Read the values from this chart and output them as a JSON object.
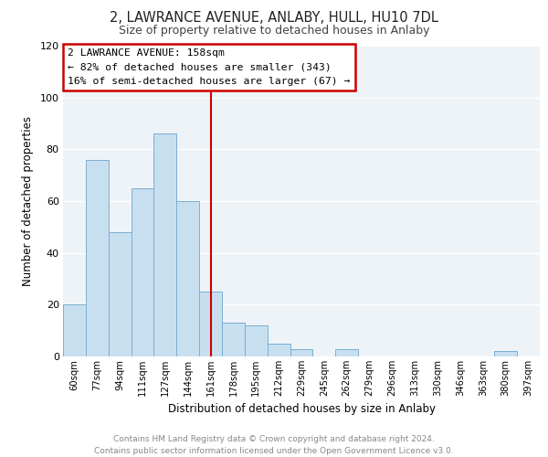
{
  "title": "2, LAWRANCE AVENUE, ANLABY, HULL, HU10 7DL",
  "subtitle": "Size of property relative to detached houses in Anlaby",
  "xlabel": "Distribution of detached houses by size in Anlaby",
  "ylabel": "Number of detached properties",
  "footer_line1": "Contains HM Land Registry data © Crown copyright and database right 2024.",
  "footer_line2": "Contains public sector information licensed under the Open Government Licence v3.0.",
  "bar_labels": [
    "60sqm",
    "77sqm",
    "94sqm",
    "111sqm",
    "127sqm",
    "144sqm",
    "161sqm",
    "178sqm",
    "195sqm",
    "212sqm",
    "229sqm",
    "245sqm",
    "262sqm",
    "279sqm",
    "296sqm",
    "313sqm",
    "330sqm",
    "346sqm",
    "363sqm",
    "380sqm",
    "397sqm"
  ],
  "bar_values": [
    20,
    76,
    48,
    65,
    86,
    60,
    25,
    13,
    12,
    5,
    3,
    0,
    3,
    0,
    0,
    0,
    0,
    0,
    0,
    2,
    0
  ],
  "bar_color": "#c8dff0",
  "bar_edge_color": "#7ab0d0",
  "vline_x": 6,
  "vline_color": "#cc0000",
  "ylim": [
    0,
    120
  ],
  "yticks": [
    0,
    20,
    40,
    60,
    80,
    100,
    120
  ],
  "annotation_title": "2 LAWRANCE AVENUE: 158sqm",
  "annotation_line1": "← 82% of detached houses are smaller (343)",
  "annotation_line2": "16% of semi-detached houses are larger (67) →",
  "annotation_box_color": "#ffffff",
  "annotation_box_edge": "#cc0000",
  "title_color": "#222222",
  "subtitle_color": "#444444",
  "bg_color": "#ffffff",
  "plot_bg_color": "#eef3f8",
  "grid_color": "#ffffff",
  "footer_color": "#888888"
}
